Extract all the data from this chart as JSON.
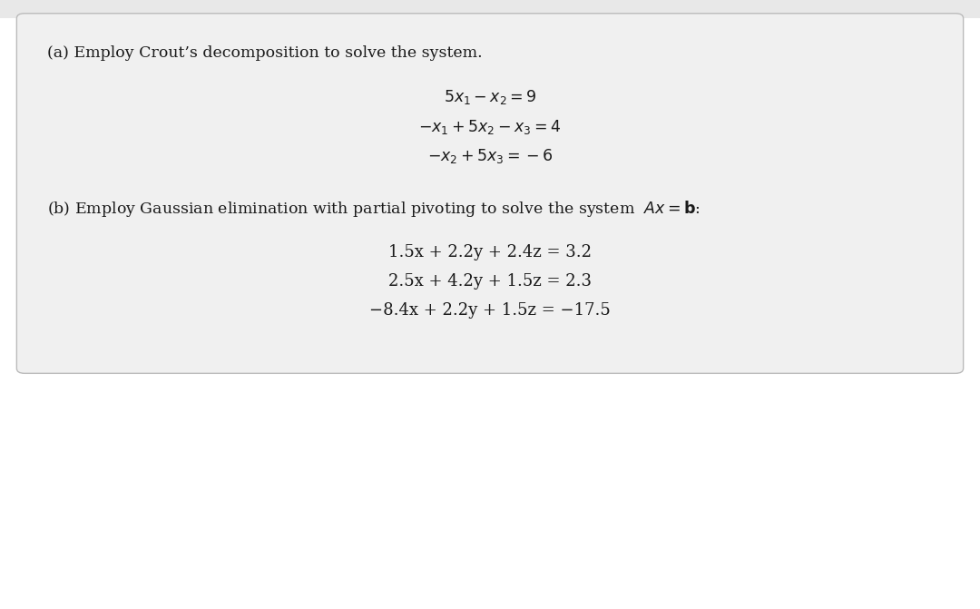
{
  "bg_top_color": "#e8e8e8",
  "bg_bottom_color": "#ffffff",
  "box_color": "#f0f0f0",
  "box_border_color": "#bbbbbb",
  "text_color": "#1a1a1a",
  "fig_width": 10.8,
  "fig_height": 6.71,
  "part_a_label": "(a) Employ Crout’s decomposition to solve the system.",
  "part_a_eq1": "$5x_1 - x_2 = 9$",
  "part_a_eq2": "$-x_1 + 5x_2 - x_3 = 4$",
  "part_a_eq3": "$-x_2 + 5x_3 = -6$",
  "part_b_label": "(b) Employ Gaussian elimination with partial pivoting to solve the system  $\\mathit{A}x = \\mathbf{b}$:",
  "part_b_eq1": "1.5x + 2.2y + 2.4z = 3.2",
  "part_b_eq2": "2.5x + 4.2y + 1.5z = 2.3",
  "part_b_eq3": "−8.4x + 2.2y + 1.5z = −17.5",
  "label_fontsize": 12.5,
  "eq_a_fontsize": 12.5,
  "eq_b_fontsize": 13.0
}
